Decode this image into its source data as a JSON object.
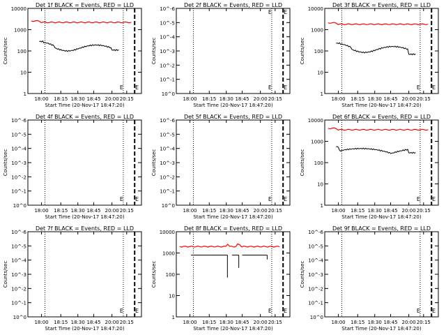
{
  "colors": {
    "background": "#ffffff",
    "axes": "#000000",
    "events": "#000000",
    "lld": "#ff0000"
  },
  "chart_data": [
    {
      "type": "line",
      "det": "1f",
      "title": "Det 1f BLACK = Events, RED = LLD",
      "xlabel": "Start Time (20-Nov-17 18:47:20)",
      "ylabel": "Counts/sec",
      "x_ticks": [
        "18:00",
        "18:15",
        "18:30",
        "18:45",
        "20:00",
        "20:15"
      ],
      "y_ticks": [
        "1",
        "10",
        "100",
        "1000",
        "10000"
      ],
      "scale": "counts",
      "series": [
        {
          "name": "LLD",
          "color": "#ff0000",
          "shape": "flat",
          "level": 2200
        },
        {
          "name": "Events",
          "color": "#000000",
          "shape": "wave",
          "start": 280,
          "min": 100,
          "end": 110,
          "x_range": [
            0.1,
            0.8
          ]
        }
      ],
      "markers": [
        "E",
        "E"
      ]
    },
    {
      "type": "line",
      "det": "2f",
      "title": "Det 2f BLACK = Events, RED = LLD",
      "xlabel": "Start Time (20-Nov-17 18:47:20)",
      "ylabel": "Counts/sec",
      "x_ticks": [
        "18:00",
        "18:15",
        "18:30",
        "18:45",
        "20:00",
        "20:15"
      ],
      "y_ticks": [
        "10^0",
        "10^-1",
        "10^-2",
        "10^-3",
        "10^-4",
        "10^-5",
        "10^-6"
      ],
      "scale": "empty",
      "series": [],
      "markers": [
        "E",
        "E",
        "E",
        "E"
      ]
    },
    {
      "type": "line",
      "det": "3f",
      "title": "Det 3f BLACK = Events, RED = LLD",
      "xlabel": "Start Time (20-Nov-17 18:47:20)",
      "ylabel": "Counts/sec",
      "x_ticks": [
        "18:00",
        "18:15",
        "18:30",
        "18:45",
        "20:00",
        "20:15"
      ],
      "y_ticks": [
        "1",
        "10",
        "100",
        "1000",
        "10000"
      ],
      "scale": "counts",
      "series": [
        {
          "name": "LLD",
          "color": "#ff0000",
          "shape": "flat",
          "level": 1800
        },
        {
          "name": "Events",
          "color": "#000000",
          "shape": "wave",
          "start": 230,
          "min": 85,
          "end": 70,
          "x_range": [
            0.1,
            0.8
          ]
        }
      ],
      "markers": [
        "E",
        "E"
      ]
    },
    {
      "type": "line",
      "det": "4f",
      "title": "Det 4f BLACK = Events, RED = LLD",
      "xlabel": "Start Time (20-Nov-17 18:47:20)",
      "ylabel": "Counts/sec",
      "x_ticks": [
        "18:00",
        "18:15",
        "18:30",
        "18:45",
        "20:00",
        "20:15"
      ],
      "y_ticks": [
        "10^0",
        "10^-1",
        "10^-2",
        "10^-3",
        "10^-4",
        "10^-5",
        "10^-6"
      ],
      "scale": "empty",
      "series": [],
      "markers": [
        "E",
        "E"
      ]
    },
    {
      "type": "line",
      "det": "5f",
      "title": "Det 5f BLACK = Events, RED = LLD",
      "xlabel": "Start Time (20-Nov-17 18:47:20)",
      "ylabel": "Counts/sec",
      "x_ticks": [
        "18:00",
        "18:15",
        "18:30",
        "18:45",
        "20:00",
        "20:15"
      ],
      "y_ticks": [
        "10^0",
        "10^-1",
        "10^-2",
        "10^-3",
        "10^-4",
        "10^-5",
        "10^-6"
      ],
      "scale": "empty",
      "series": [],
      "markers": [
        "E",
        "E"
      ]
    },
    {
      "type": "line",
      "det": "6f",
      "title": "Det 6f BLACK = Events, RED = LLD",
      "xlabel": "Start Time (20-Nov-17 18:47:20)",
      "ylabel": "Counts/sec",
      "x_ticks": [
        "18:00",
        "18:15",
        "18:30",
        "18:45",
        "20:00",
        "20:15"
      ],
      "y_ticks": [
        "1",
        "10",
        "100",
        "1000",
        "10000"
      ],
      "scale": "counts",
      "series": [
        {
          "name": "LLD",
          "color": "#ff0000",
          "shape": "flat",
          "level": 3500
        },
        {
          "name": "Events",
          "color": "#000000",
          "shape": "wave6",
          "start": 550,
          "min": 270,
          "end": 290,
          "x_range": [
            0.1,
            0.8
          ]
        }
      ],
      "markers": [
        "E",
        "E"
      ]
    },
    {
      "type": "line",
      "det": "7f",
      "title": "Det 7f BLACK = Events, RED = LLD",
      "xlabel": "Start Time (20-Nov-17 18:47:20)",
      "ylabel": "Counts/sec",
      "x_ticks": [
        "18:00",
        "18:15",
        "18:30",
        "18:45",
        "20:00",
        "20:15"
      ],
      "y_ticks": [
        "10^0",
        "10^-1",
        "10^-2",
        "10^-3",
        "10^-4",
        "10^-5",
        "10^-6"
      ],
      "scale": "empty",
      "series": [],
      "markers": [
        "E",
        "E"
      ]
    },
    {
      "type": "line",
      "det": "8f",
      "title": "Det 8f BLACK = Events, RED = LLD",
      "xlabel": "Start Time (20-Nov-17 18:47:20)",
      "ylabel": "Counts/sec",
      "x_ticks": [
        "18:00",
        "18:15",
        "18:30",
        "18:45",
        "20:00",
        "20:15"
      ],
      "y_ticks": [
        "1",
        "10",
        "100",
        "1000",
        "10000"
      ],
      "scale": "counts",
      "series": [
        {
          "name": "LLD",
          "color": "#ff0000",
          "shape": "flat_bump",
          "level": 2000
        },
        {
          "name": "Events",
          "color": "#000000",
          "shape": "gapped",
          "level": 800,
          "x_range": [
            0.13,
            0.8
          ]
        }
      ],
      "markers": [
        "E",
        "E"
      ]
    },
    {
      "type": "line",
      "det": "9f",
      "title": "Det 9f BLACK = Events, RED = LLD",
      "xlabel": "Start Time (20-Nov-17 18:47:20)",
      "ylabel": "Counts/sec",
      "x_ticks": [
        "18:00",
        "18:15",
        "18:30",
        "18:45",
        "20:00",
        "20:15"
      ],
      "y_ticks": [
        "10^0",
        "10^-1",
        "10^-2",
        "10^-3",
        "10^-4",
        "10^-5",
        "10^-6"
      ],
      "scale": "empty",
      "series": [],
      "markers": [
        "E",
        "E"
      ]
    }
  ]
}
